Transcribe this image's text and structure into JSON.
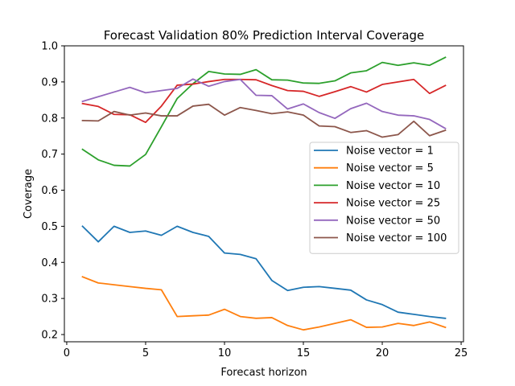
{
  "chart_data": {
    "type": "line",
    "title": "Forecast Validation 80% Prediction Interval Coverage",
    "xlabel": "Forecast horizon",
    "ylabel": "Coverage",
    "xlim": [
      -0.15,
      25.15
    ],
    "ylim": [
      0.18,
      1.0
    ],
    "xticks": [
      0,
      5,
      10,
      15,
      20,
      25
    ],
    "yticks": [
      0.2,
      0.3,
      0.4,
      0.5,
      0.6,
      0.7,
      0.8,
      0.9,
      1.0
    ],
    "xtick_labels": [
      "0",
      "5",
      "10",
      "15",
      "20",
      "25"
    ],
    "ytick_labels": [
      "0.2",
      "0.3",
      "0.4",
      "0.5",
      "0.6",
      "0.7",
      "0.8",
      "0.9",
      "1.0"
    ],
    "grid": false,
    "legend_position": "center-right",
    "x": [
      1,
      2,
      3,
      4,
      5,
      6,
      7,
      8,
      9,
      10,
      11,
      12,
      13,
      14,
      15,
      16,
      17,
      18,
      19,
      20,
      21,
      22,
      23,
      24
    ],
    "series": [
      {
        "name": "Noise vector = 1",
        "color": "#1f77b4",
        "values": [
          0.5,
          0.457,
          0.5,
          0.483,
          0.487,
          0.475,
          0.5,
          0.483,
          0.472,
          0.426,
          0.422,
          0.41,
          0.35,
          0.322,
          0.331,
          0.333,
          0.328,
          0.323,
          0.296,
          0.283,
          0.262,
          0.256,
          0.25,
          0.245
        ]
      },
      {
        "name": "Noise vector = 5",
        "color": "#ff7f0e",
        "values": [
          0.36,
          0.343,
          0.338,
          0.333,
          0.328,
          0.324,
          0.25,
          0.252,
          0.254,
          0.27,
          0.25,
          0.245,
          0.247,
          0.225,
          0.213,
          0.221,
          0.231,
          0.241,
          0.22,
          0.221,
          0.231,
          0.225,
          0.235,
          0.22
        ]
      },
      {
        "name": "Noise vector = 10",
        "color": "#2ca02c",
        "values": [
          0.713,
          0.684,
          0.669,
          0.667,
          0.699,
          0.776,
          0.854,
          0.895,
          0.929,
          0.922,
          0.921,
          0.934,
          0.906,
          0.905,
          0.897,
          0.896,
          0.903,
          0.925,
          0.931,
          0.954,
          0.946,
          0.953,
          0.946,
          0.968
        ]
      },
      {
        "name": "Noise vector = 25",
        "color": "#d62728",
        "values": [
          0.84,
          0.832,
          0.81,
          0.809,
          0.788,
          0.833,
          0.891,
          0.894,
          0.901,
          0.907,
          0.907,
          0.906,
          0.89,
          0.876,
          0.874,
          0.86,
          0.873,
          0.887,
          0.872,
          0.893,
          0.9,
          0.907,
          0.868,
          0.89
        ]
      },
      {
        "name": "Noise vector = 50",
        "color": "#9467bd",
        "values": [
          0.846,
          0.859,
          0.872,
          0.885,
          0.87,
          0.876,
          0.882,
          0.908,
          0.888,
          0.901,
          0.907,
          0.863,
          0.862,
          0.825,
          0.839,
          0.815,
          0.799,
          0.826,
          0.841,
          0.818,
          0.808,
          0.806,
          0.796,
          0.771
        ]
      },
      {
        "name": "Noise vector = 100",
        "color": "#8c564b",
        "values": [
          0.793,
          0.792,
          0.818,
          0.808,
          0.814,
          0.806,
          0.806,
          0.833,
          0.838,
          0.808,
          0.829,
          0.821,
          0.812,
          0.817,
          0.808,
          0.778,
          0.776,
          0.76,
          0.765,
          0.747,
          0.754,
          0.791,
          0.751,
          0.766
        ]
      }
    ]
  }
}
